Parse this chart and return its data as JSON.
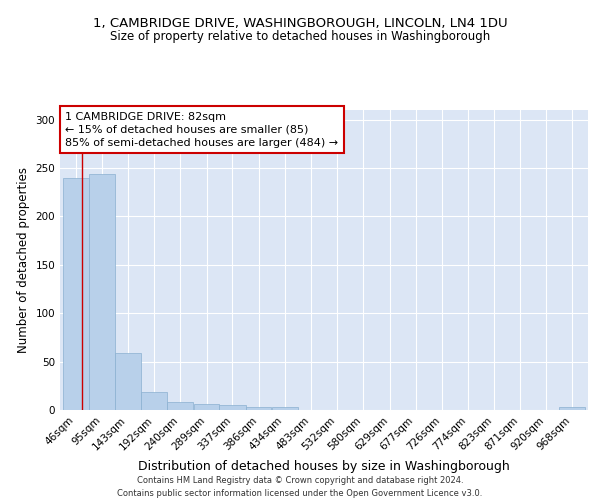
{
  "title_line1": "1, CAMBRIDGE DRIVE, WASHINGBOROUGH, LINCOLN, LN4 1DU",
  "title_line2": "Size of property relative to detached houses in Washingborough",
  "xlabel": "Distribution of detached houses by size in Washingborough",
  "ylabel": "Number of detached properties",
  "footer_line1": "Contains HM Land Registry data © Crown copyright and database right 2024.",
  "footer_line2": "Contains public sector information licensed under the Open Government Licence v3.0.",
  "bar_edges": [
    46,
    95,
    143,
    192,
    240,
    289,
    337,
    386,
    434,
    483,
    532,
    580,
    629,
    677,
    726,
    774,
    823,
    871,
    920,
    968,
    1017
  ],
  "bar_values": [
    240,
    244,
    59,
    19,
    8,
    6,
    5,
    3,
    3,
    0,
    0,
    0,
    0,
    0,
    0,
    0,
    0,
    0,
    0,
    3
  ],
  "bar_color": "#b8d0ea",
  "bar_edge_color": "#8ab0d0",
  "annotation_text": "1 CAMBRIDGE DRIVE: 82sqm\n← 15% of detached houses are smaller (85)\n85% of semi-detached houses are larger (484) →",
  "annotation_box_color": "white",
  "annotation_box_edge_color": "#cc0000",
  "red_line_color": "#cc0000",
  "red_line_x": 82,
  "background_color": "#dce6f5",
  "ylim": [
    0,
    310
  ],
  "yticks": [
    0,
    50,
    100,
    150,
    200,
    250,
    300
  ],
  "title_fontsize": 9.5,
  "subtitle_fontsize": 8.5,
  "annotation_fontsize": 8,
  "axis_label_fontsize": 8.5,
  "tick_fontsize": 7.5,
  "footer_fontsize": 6
}
